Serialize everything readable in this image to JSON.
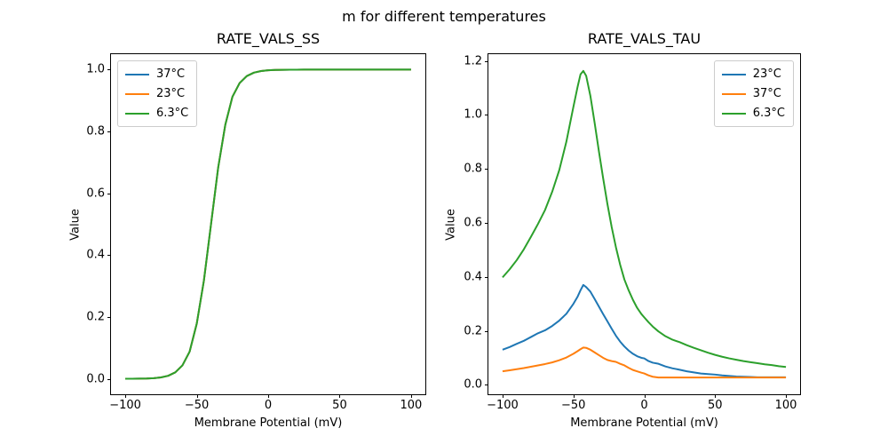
{
  "figure": {
    "suptitle": "m for different temperatures",
    "background_color": "#ffffff",
    "spine_color": "#000000",
    "legend_border_color": "#cccccc"
  },
  "chart_data": [
    {
      "type": "line",
      "title": "RATE_VALS_SS",
      "xlabel": "Membrane Potential (mV)",
      "ylabel": "Value",
      "xlim": [
        -110,
        110
      ],
      "ylim": [
        -0.05,
        1.05
      ],
      "xticks": [
        -100,
        -50,
        0,
        50,
        100
      ],
      "xticklabels": [
        "−100",
        "−50",
        "0",
        "50",
        "100"
      ],
      "yticks": [
        0.0,
        0.2,
        0.4,
        0.6,
        0.8,
        1.0
      ],
      "yticklabels": [
        "0.0",
        "0.2",
        "0.4",
        "0.6",
        "0.8",
        "1.0"
      ],
      "grid": false,
      "legend_loc": "upper-left",
      "note": "All three temperature curves overlap exactly; green (6.3°C, drawn last) is visible on top.",
      "x": [
        -100,
        -95,
        -90,
        -85,
        -80,
        -75,
        -70,
        -65,
        -60,
        -55,
        -50,
        -45,
        -40,
        -35,
        -30,
        -25,
        -20,
        -15,
        -10,
        -5,
        0,
        5,
        10,
        15,
        20,
        25,
        30,
        35,
        40,
        45,
        50,
        55,
        60,
        65,
        70,
        75,
        80,
        85,
        90,
        95,
        100
      ],
      "series": [
        {
          "name": "37°C",
          "color": "#1f77b4",
          "y": [
            0.0001,
            0.0002,
            0.0005,
            0.001,
            0.0021,
            0.0046,
            0.0098,
            0.0209,
            0.0435,
            0.0876,
            0.1782,
            0.3173,
            0.5,
            0.6827,
            0.8218,
            0.9124,
            0.9565,
            0.9791,
            0.9902,
            0.9954,
            0.9979,
            0.999,
            0.9995,
            0.9998,
            0.9999,
            1.0,
            1.0,
            1.0,
            1.0,
            1.0,
            1.0,
            1.0,
            1.0,
            1.0,
            1.0,
            1.0,
            1.0,
            1.0,
            1.0,
            1.0,
            1.0
          ]
        },
        {
          "name": "23°C",
          "color": "#ff7f0e",
          "y": [
            0.0001,
            0.0002,
            0.0005,
            0.001,
            0.0021,
            0.0046,
            0.0098,
            0.0209,
            0.0435,
            0.0876,
            0.1782,
            0.3173,
            0.5,
            0.6827,
            0.8218,
            0.9124,
            0.9565,
            0.9791,
            0.9902,
            0.9954,
            0.9979,
            0.999,
            0.9995,
            0.9998,
            0.9999,
            1.0,
            1.0,
            1.0,
            1.0,
            1.0,
            1.0,
            1.0,
            1.0,
            1.0,
            1.0,
            1.0,
            1.0,
            1.0,
            1.0,
            1.0,
            1.0
          ]
        },
        {
          "name": "6.3°C",
          "color": "#2ca02c",
          "y": [
            0.0001,
            0.0002,
            0.0005,
            0.001,
            0.0021,
            0.0046,
            0.0098,
            0.0209,
            0.0435,
            0.0876,
            0.1782,
            0.3173,
            0.5,
            0.6827,
            0.8218,
            0.9124,
            0.9565,
            0.9791,
            0.9902,
            0.9954,
            0.9979,
            0.999,
            0.9995,
            0.9998,
            0.9999,
            1.0,
            1.0,
            1.0,
            1.0,
            1.0,
            1.0,
            1.0,
            1.0,
            1.0,
            1.0,
            1.0,
            1.0,
            1.0,
            1.0,
            1.0,
            1.0
          ]
        }
      ]
    },
    {
      "type": "line",
      "title": "RATE_VALS_TAU",
      "xlabel": "Membrane Potential (mV)",
      "ylabel": "Value",
      "xlim": [
        -110,
        110
      ],
      "ylim": [
        -0.035,
        1.225
      ],
      "xticks": [
        -100,
        -50,
        0,
        50,
        100
      ],
      "xticklabels": [
        "−100",
        "−50",
        "0",
        "50",
        "100"
      ],
      "yticks": [
        0.0,
        0.2,
        0.4,
        0.6,
        0.8,
        1.0,
        1.2
      ],
      "yticklabels": [
        "0.0",
        "0.2",
        "0.4",
        "0.6",
        "0.8",
        "1.0",
        "1.2"
      ],
      "grid": false,
      "legend_loc": "upper-right",
      "note": "Bell-shaped curves peaking near -44 mV: 6.3°C peak ≈1.16, 23°C peak ≈0.37, 37°C peak ≈0.14.",
      "x": [
        -100,
        -95,
        -90,
        -85,
        -80,
        -75,
        -70,
        -65,
        -60,
        -55,
        -50,
        -47,
        -45,
        -43,
        -41,
        -38,
        -35,
        -32,
        -29,
        -26,
        -23,
        -20,
        -17,
        -14,
        -11,
        -8,
        -5,
        -2,
        0,
        3,
        6,
        10,
        15,
        20,
        25,
        30,
        35,
        40,
        45,
        50,
        55,
        60,
        65,
        70,
        75,
        80,
        85,
        90,
        95,
        100
      ],
      "series": [
        {
          "name": "23°C",
          "color": "#1f77b4",
          "y": [
            0.13,
            0.14,
            0.152,
            0.163,
            0.177,
            0.191,
            0.202,
            0.218,
            0.238,
            0.263,
            0.3,
            0.327,
            0.35,
            0.37,
            0.362,
            0.345,
            0.318,
            0.29,
            0.262,
            0.235,
            0.208,
            0.182,
            0.16,
            0.142,
            0.127,
            0.115,
            0.106,
            0.1,
            0.098,
            0.088,
            0.082,
            0.078,
            0.068,
            0.061,
            0.056,
            0.05,
            0.046,
            0.042,
            0.04,
            0.038,
            0.035,
            0.033,
            0.031,
            0.03,
            0.029,
            0.028,
            0.028,
            0.028,
            0.028,
            0.028
          ]
        },
        {
          "name": "37°C",
          "color": "#ff7f0e",
          "y": [
            0.05,
            0.054,
            0.058,
            0.062,
            0.067,
            0.072,
            0.077,
            0.083,
            0.091,
            0.101,
            0.115,
            0.125,
            0.132,
            0.138,
            0.137,
            0.13,
            0.12,
            0.11,
            0.1,
            0.092,
            0.088,
            0.085,
            0.078,
            0.072,
            0.063,
            0.055,
            0.05,
            0.045,
            0.042,
            0.035,
            0.03,
            0.027,
            0.027,
            0.027,
            0.027,
            0.027,
            0.027,
            0.027,
            0.027,
            0.027,
            0.027,
            0.027,
            0.027,
            0.027,
            0.027,
            0.027,
            0.027,
            0.027,
            0.027,
            0.027
          ]
        },
        {
          "name": "6.3°C",
          "color": "#2ca02c",
          "y": [
            0.398,
            0.428,
            0.462,
            0.502,
            0.548,
            0.596,
            0.648,
            0.715,
            0.795,
            0.9,
            1.03,
            1.105,
            1.15,
            1.163,
            1.145,
            1.07,
            0.97,
            0.865,
            0.765,
            0.67,
            0.585,
            0.51,
            0.445,
            0.39,
            0.35,
            0.315,
            0.285,
            0.262,
            0.25,
            0.232,
            0.216,
            0.198,
            0.18,
            0.167,
            0.158,
            0.147,
            0.137,
            0.128,
            0.119,
            0.111,
            0.104,
            0.098,
            0.093,
            0.088,
            0.084,
            0.08,
            0.076,
            0.073,
            0.069,
            0.066
          ]
        }
      ]
    }
  ]
}
